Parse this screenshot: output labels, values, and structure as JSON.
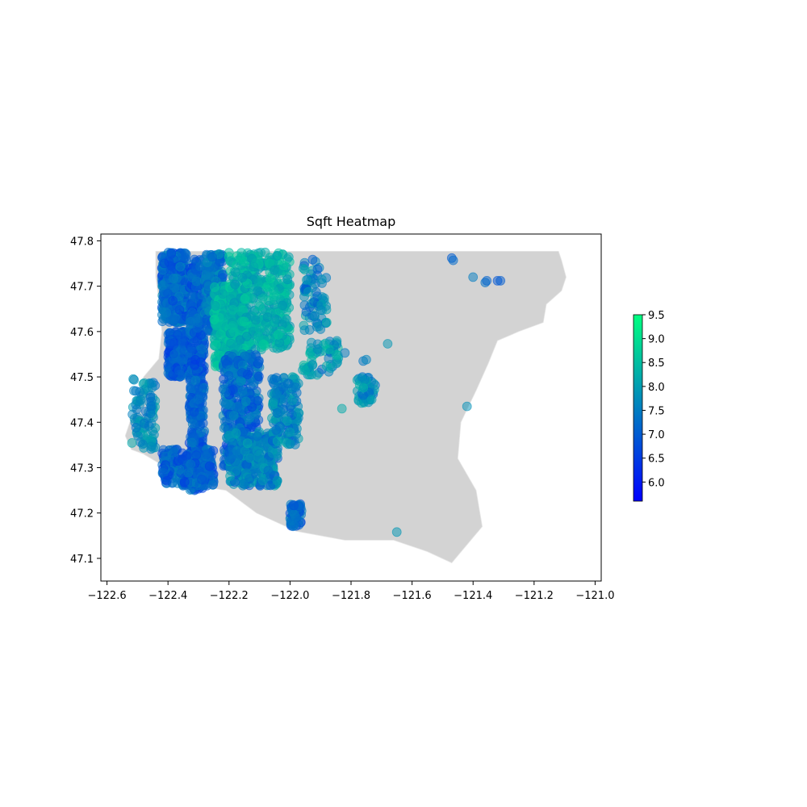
{
  "chart_data": {
    "type": "scatter",
    "title": "Sqft Heatmap",
    "xlabel": "",
    "ylabel": "",
    "xlim": [
      -122.62,
      -120.98
    ],
    "ylim": [
      47.05,
      47.815
    ],
    "xticks": [
      -122.6,
      -122.4,
      -122.2,
      -122.0,
      -121.8,
      -121.6,
      -121.4,
      -121.2,
      -121.0
    ],
    "xtick_labels": [
      "−122.6",
      "−122.4",
      "−122.2",
      "−122.0",
      "−121.8",
      "−121.6",
      "−121.4",
      "−121.2",
      "−121.0"
    ],
    "yticks": [
      47.1,
      47.2,
      47.3,
      47.4,
      47.5,
      47.6,
      47.7,
      47.8
    ],
    "ytick_labels": [
      "47.1",
      "47.2",
      "47.3",
      "47.4",
      "47.5",
      "47.6",
      "47.7",
      "47.8"
    ],
    "grid": false,
    "colorbar": {
      "colormap": "winter",
      "min": 5.6,
      "max": 9.5,
      "ticks": [
        6.0,
        6.5,
        7.0,
        7.5,
        8.0,
        8.5,
        9.0,
        9.5
      ],
      "tick_labels": [
        "6.0",
        "6.5",
        "7.0",
        "7.5",
        "8.0",
        "8.5",
        "9.0",
        "9.5"
      ],
      "low_color": "#0000ff",
      "high_color": "#00ff80"
    },
    "background_region": {
      "name": "county boundary",
      "fill": "#d3d3d3",
      "outline": [
        [
          -122.44,
          47.777
        ],
        [
          -121.12,
          47.777
        ],
        [
          -121.11,
          47.757
        ],
        [
          -121.095,
          47.72
        ],
        [
          -121.11,
          47.69
        ],
        [
          -121.16,
          47.66
        ],
        [
          -121.17,
          47.62
        ],
        [
          -121.25,
          47.6
        ],
        [
          -121.32,
          47.58
        ],
        [
          -121.35,
          47.53
        ],
        [
          -121.39,
          47.47
        ],
        [
          -121.44,
          47.4
        ],
        [
          -121.45,
          47.32
        ],
        [
          -121.39,
          47.25
        ],
        [
          -121.37,
          47.17
        ],
        [
          -121.42,
          47.13
        ],
        [
          -121.47,
          47.09
        ],
        [
          -121.55,
          47.115
        ],
        [
          -121.66,
          47.14
        ],
        [
          -121.82,
          47.14
        ],
        [
          -121.98,
          47.16
        ],
        [
          -122.11,
          47.2
        ],
        [
          -122.21,
          47.25
        ],
        [
          -122.31,
          47.26
        ],
        [
          -122.38,
          47.29
        ],
        [
          -122.43,
          47.31
        ],
        [
          -122.48,
          47.33
        ],
        [
          -122.52,
          47.34
        ],
        [
          -122.54,
          47.37
        ],
        [
          -122.52,
          47.41
        ],
        [
          -122.5,
          47.45
        ],
        [
          -122.48,
          47.5
        ],
        [
          -122.43,
          47.54
        ],
        [
          -122.42,
          47.6
        ],
        [
          -122.43,
          47.67
        ],
        [
          -122.44,
          47.72
        ]
      ]
    },
    "marker_alpha": 0.5,
    "point_clusters": [
      {
        "x": [
          -122.42,
          -122.34
        ],
        "y": [
          47.62,
          47.775
        ],
        "n": 420,
        "c": [
          6.6,
          7.8
        ]
      },
      {
        "x": [
          -122.4,
          -122.33
        ],
        "y": [
          47.5,
          47.6
        ],
        "n": 300,
        "c": [
          6.4,
          7.5
        ]
      },
      {
        "x": [
          -122.33,
          -122.28
        ],
        "y": [
          47.25,
          47.76
        ],
        "n": 500,
        "c": [
          6.5,
          7.6
        ]
      },
      {
        "x": [
          -122.28,
          -122.22
        ],
        "y": [
          47.6,
          47.775
        ],
        "n": 250,
        "c": [
          6.8,
          7.9
        ]
      },
      {
        "x": [
          -122.25,
          -122.14
        ],
        "y": [
          47.52,
          47.7
        ],
        "n": 320,
        "c": [
          8.0,
          8.8
        ]
      },
      {
        "x": [
          -122.2,
          -122.0
        ],
        "y": [
          47.56,
          47.775
        ],
        "n": 450,
        "c": [
          7.8,
          8.8
        ]
      },
      {
        "x": [
          -122.22,
          -122.1
        ],
        "y": [
          47.3,
          47.55
        ],
        "n": 380,
        "c": [
          6.6,
          7.8
        ]
      },
      {
        "x": [
          -122.42,
          -122.25
        ],
        "y": [
          47.26,
          47.34
        ],
        "n": 250,
        "c": [
          6.5,
          7.6
        ]
      },
      {
        "x": [
          -122.2,
          -122.04
        ],
        "y": [
          47.26,
          47.38
        ],
        "n": 280,
        "c": [
          7.0,
          8.2
        ]
      },
      {
        "x": [
          -122.06,
          -121.97
        ],
        "y": [
          47.35,
          47.5
        ],
        "n": 150,
        "c": [
          7.0,
          8.2
        ]
      },
      {
        "x": [
          -122.0,
          -121.96
        ],
        "y": [
          47.17,
          47.22
        ],
        "n": 60,
        "c": [
          6.6,
          7.6
        ]
      },
      {
        "x": [
          -122.52,
          -122.44
        ],
        "y": [
          47.34,
          47.5
        ],
        "n": 90,
        "c": [
          7.2,
          8.2
        ]
      },
      {
        "x": [
          -121.96,
          -121.88
        ],
        "y": [
          47.6,
          47.76
        ],
        "n": 70,
        "c": [
          7.0,
          8.2
        ]
      },
      {
        "x": [
          -121.96,
          -121.84
        ],
        "y": [
          47.5,
          47.58
        ],
        "n": 60,
        "c": [
          7.2,
          8.6
        ]
      },
      {
        "x": [
          -121.78,
          -121.72
        ],
        "y": [
          47.44,
          47.5
        ],
        "n": 45,
        "c": [
          7.2,
          8.4
        ]
      }
    ],
    "points": [
      {
        "x": -121.47,
        "y": 47.762,
        "c": 7.0
      },
      {
        "x": -121.465,
        "y": 47.757,
        "c": 7.2
      },
      {
        "x": -121.4,
        "y": 47.72,
        "c": 7.5
      },
      {
        "x": -121.36,
        "y": 47.708,
        "c": 7.3
      },
      {
        "x": -121.355,
        "y": 47.712,
        "c": 7.1
      },
      {
        "x": -121.32,
        "y": 47.712,
        "c": 6.9
      },
      {
        "x": -121.31,
        "y": 47.712,
        "c": 7.0
      },
      {
        "x": -121.68,
        "y": 47.573,
        "c": 7.9
      },
      {
        "x": -121.42,
        "y": 47.435,
        "c": 7.8
      },
      {
        "x": -121.65,
        "y": 47.158,
        "c": 7.9
      },
      {
        "x": -121.83,
        "y": 47.43,
        "c": 8.2
      },
      {
        "x": -121.76,
        "y": 47.535,
        "c": 7.4
      },
      {
        "x": -121.75,
        "y": 47.538,
        "c": 7.6
      },
      {
        "x": -121.82,
        "y": 47.553,
        "c": 7.5
      },
      {
        "x": -121.88,
        "y": 47.62,
        "c": 8.3
      },
      {
        "x": -121.9,
        "y": 47.605,
        "c": 7.6
      }
    ]
  }
}
